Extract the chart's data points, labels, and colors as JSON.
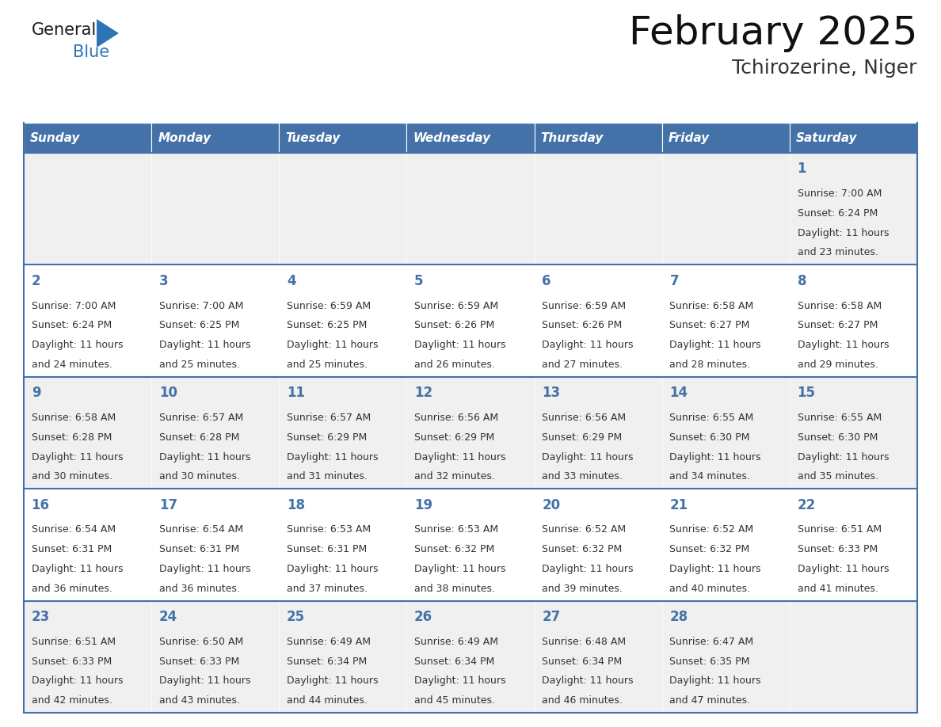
{
  "title": "February 2025",
  "subtitle": "Tchirozerine, Niger",
  "header_bg": "#4472A8",
  "header_text_color": "#FFFFFF",
  "cell_bg_even": "#F0F0F0",
  "cell_bg_odd": "#FFFFFF",
  "day_number_color": "#4472A8",
  "info_text_color": "#333333",
  "border_color": "#4472A8",
  "days_of_week": [
    "Sunday",
    "Monday",
    "Tuesday",
    "Wednesday",
    "Thursday",
    "Friday",
    "Saturday"
  ],
  "calendar_data": [
    [
      null,
      null,
      null,
      null,
      null,
      null,
      {
        "day": 1,
        "sunrise": "7:00 AM",
        "sunset": "6:24 PM",
        "daylight": "11 hours and 23 minutes."
      }
    ],
    [
      {
        "day": 2,
        "sunrise": "7:00 AM",
        "sunset": "6:24 PM",
        "daylight": "11 hours and 24 minutes."
      },
      {
        "day": 3,
        "sunrise": "7:00 AM",
        "sunset": "6:25 PM",
        "daylight": "11 hours and 25 minutes."
      },
      {
        "day": 4,
        "sunrise": "6:59 AM",
        "sunset": "6:25 PM",
        "daylight": "11 hours and 25 minutes."
      },
      {
        "day": 5,
        "sunrise": "6:59 AM",
        "sunset": "6:26 PM",
        "daylight": "11 hours and 26 minutes."
      },
      {
        "day": 6,
        "sunrise": "6:59 AM",
        "sunset": "6:26 PM",
        "daylight": "11 hours and 27 minutes."
      },
      {
        "day": 7,
        "sunrise": "6:58 AM",
        "sunset": "6:27 PM",
        "daylight": "11 hours and 28 minutes."
      },
      {
        "day": 8,
        "sunrise": "6:58 AM",
        "sunset": "6:27 PM",
        "daylight": "11 hours and 29 minutes."
      }
    ],
    [
      {
        "day": 9,
        "sunrise": "6:58 AM",
        "sunset": "6:28 PM",
        "daylight": "11 hours and 30 minutes."
      },
      {
        "day": 10,
        "sunrise": "6:57 AM",
        "sunset": "6:28 PM",
        "daylight": "11 hours and 30 minutes."
      },
      {
        "day": 11,
        "sunrise": "6:57 AM",
        "sunset": "6:29 PM",
        "daylight": "11 hours and 31 minutes."
      },
      {
        "day": 12,
        "sunrise": "6:56 AM",
        "sunset": "6:29 PM",
        "daylight": "11 hours and 32 minutes."
      },
      {
        "day": 13,
        "sunrise": "6:56 AM",
        "sunset": "6:29 PM",
        "daylight": "11 hours and 33 minutes."
      },
      {
        "day": 14,
        "sunrise": "6:55 AM",
        "sunset": "6:30 PM",
        "daylight": "11 hours and 34 minutes."
      },
      {
        "day": 15,
        "sunrise": "6:55 AM",
        "sunset": "6:30 PM",
        "daylight": "11 hours and 35 minutes."
      }
    ],
    [
      {
        "day": 16,
        "sunrise": "6:54 AM",
        "sunset": "6:31 PM",
        "daylight": "11 hours and 36 minutes."
      },
      {
        "day": 17,
        "sunrise": "6:54 AM",
        "sunset": "6:31 PM",
        "daylight": "11 hours and 36 minutes."
      },
      {
        "day": 18,
        "sunrise": "6:53 AM",
        "sunset": "6:31 PM",
        "daylight": "11 hours and 37 minutes."
      },
      {
        "day": 19,
        "sunrise": "6:53 AM",
        "sunset": "6:32 PM",
        "daylight": "11 hours and 38 minutes."
      },
      {
        "day": 20,
        "sunrise": "6:52 AM",
        "sunset": "6:32 PM",
        "daylight": "11 hours and 39 minutes."
      },
      {
        "day": 21,
        "sunrise": "6:52 AM",
        "sunset": "6:32 PM",
        "daylight": "11 hours and 40 minutes."
      },
      {
        "day": 22,
        "sunrise": "6:51 AM",
        "sunset": "6:33 PM",
        "daylight": "11 hours and 41 minutes."
      }
    ],
    [
      {
        "day": 23,
        "sunrise": "6:51 AM",
        "sunset": "6:33 PM",
        "daylight": "11 hours and 42 minutes."
      },
      {
        "day": 24,
        "sunrise": "6:50 AM",
        "sunset": "6:33 PM",
        "daylight": "11 hours and 43 minutes."
      },
      {
        "day": 25,
        "sunrise": "6:49 AM",
        "sunset": "6:34 PM",
        "daylight": "11 hours and 44 minutes."
      },
      {
        "day": 26,
        "sunrise": "6:49 AM",
        "sunset": "6:34 PM",
        "daylight": "11 hours and 45 minutes."
      },
      {
        "day": 27,
        "sunrise": "6:48 AM",
        "sunset": "6:34 PM",
        "daylight": "11 hours and 46 minutes."
      },
      {
        "day": 28,
        "sunrise": "6:47 AM",
        "sunset": "6:35 PM",
        "daylight": "11 hours and 47 minutes."
      },
      null
    ]
  ],
  "logo_general_color": "#1a1a1a",
  "logo_blue_color": "#2E75B6",
  "title_fontsize": 36,
  "subtitle_fontsize": 18,
  "header_fontsize": 11,
  "day_num_fontsize": 12,
  "info_fontsize": 9
}
